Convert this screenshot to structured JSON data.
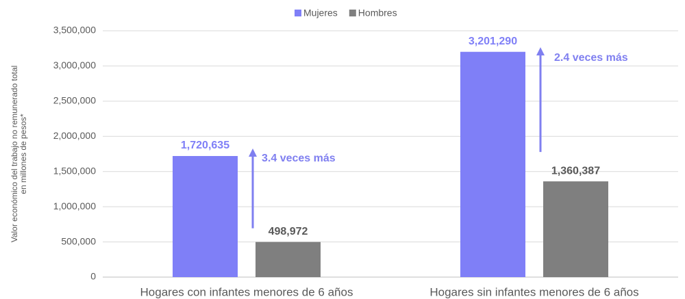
{
  "chart_data": {
    "type": "bar",
    "y_label": [
      "Valor económico del trabajo no remunerado total",
      "en millones de pesos*"
    ],
    "categories": [
      "Hogares con infantes menores de 6 años",
      "Hogares sin infantes menores de 6 años"
    ],
    "series": [
      {
        "name": "Mujeres",
        "color": "#7f7ff7",
        "values": [
          1720635,
          3201290
        ],
        "value_labels": [
          "1,720,635",
          "3,201,290"
        ]
      },
      {
        "name": "Hombres",
        "color": "#7f7f7f",
        "values": [
          498972,
          1360387
        ],
        "value_labels": [
          "498,972",
          "1,360,387"
        ]
      }
    ],
    "annotations": [
      "3.4 veces más",
      "2.4 veces más"
    ],
    "annotation_color": "#7f7ff0",
    "ylim": [
      0,
      3500000
    ],
    "yticks": [
      0,
      {
        "value": 500000,
        "label": "500,000"
      },
      {
        "value": 1000000,
        "label": "1,000,000"
      },
      {
        "value": 1500000,
        "label": "1,500,000"
      },
      {
        "value": 2000000,
        "label": "2,000,000"
      },
      {
        "value": 2500000,
        "label": "2,500,000"
      },
      {
        "value": 3000000,
        "label": "3,000,000"
      },
      {
        "value": 3500000,
        "label": "3,500,000"
      }
    ],
    "grid": true,
    "legend": "top"
  }
}
